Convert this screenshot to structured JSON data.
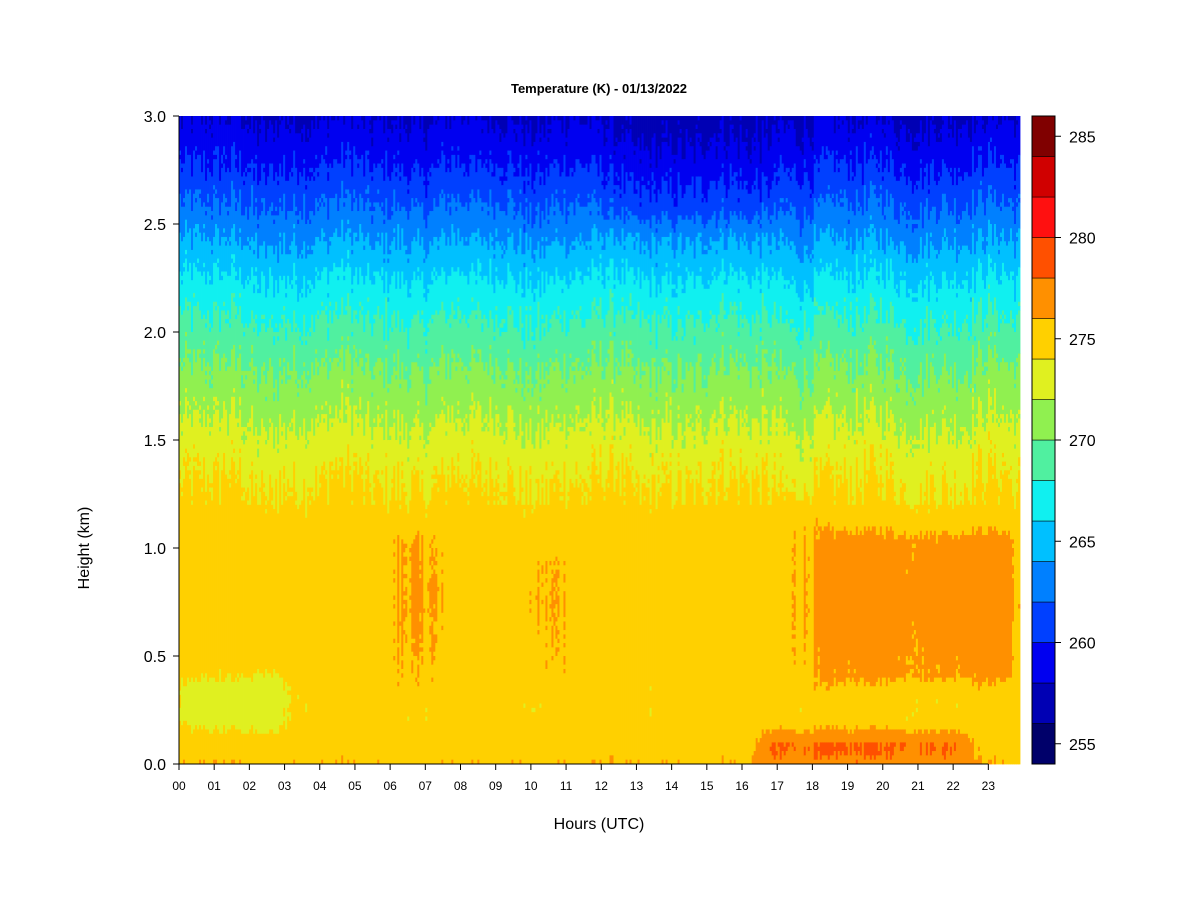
{
  "chart_data": {
    "type": "heatmap",
    "title": "Temperature (K) - 01/13/2022",
    "xlabel": "Hours (UTC)",
    "ylabel": "Height (km)",
    "xlim": [
      0,
      23.9
    ],
    "ylim": [
      0,
      3.0
    ],
    "x_ticks": [
      "00",
      "01",
      "02",
      "03",
      "04",
      "05",
      "06",
      "07",
      "08",
      "09",
      "10",
      "11",
      "12",
      "13",
      "14",
      "15",
      "16",
      "17",
      "18",
      "19",
      "20",
      "21",
      "22",
      "23"
    ],
    "y_ticks": [
      "0.0",
      "0.5",
      "1.0",
      "1.5",
      "2.0",
      "2.5",
      "3.0"
    ],
    "colorbar": {
      "range": [
        254,
        286
      ],
      "levels": [
        254,
        256,
        258,
        260,
        262,
        264,
        266,
        268,
        270,
        272,
        274,
        276,
        278,
        280,
        282,
        284,
        286
      ],
      "ticks": [
        255,
        260,
        265,
        270,
        275,
        280,
        285
      ],
      "colors": [
        "#00006a",
        "#0000b4",
        "#0000f0",
        "#0040ff",
        "#0080ff",
        "#00c0ff",
        "#10f0f0",
        "#50f0a0",
        "#90f050",
        "#e0f020",
        "#ffd000",
        "#ff9000",
        "#ff5000",
        "#ff1010",
        "#d00000",
        "#800000"
      ]
    },
    "profile": {
      "height_km": [
        0.0,
        0.05,
        0.1,
        0.2,
        0.3,
        0.5,
        0.75,
        1.0,
        1.25,
        1.4,
        1.5,
        1.6,
        1.8,
        2.0,
        2.2,
        2.4,
        2.6,
        2.8,
        3.0
      ],
      "temperature_k": [
        275.8,
        275.2,
        275.0,
        274.6,
        274.5,
        274.8,
        275.0,
        274.9,
        274.3,
        273.4,
        272.7,
        271.8,
        270.3,
        268.6,
        266.6,
        264.2,
        261.8,
        259.6,
        257.8
      ]
    },
    "time_anomalies": [
      {
        "hours": [
          6,
          7.5
        ],
        "heights_km": [
          0.3,
          1.1
        ],
        "delta_k": 1.2
      },
      {
        "hours": [
          9.8,
          11.2
        ],
        "heights_km": [
          0.35,
          1.0
        ],
        "delta_k": 1.0
      },
      {
        "hours": [
          17.2,
          18.5
        ],
        "heights_km": [
          0.3,
          1.2
        ],
        "delta_k": 1.2
      },
      {
        "hours": [
          18.5,
          23.8
        ],
        "heights_km": [
          0.35,
          1.1
        ],
        "delta_k": 1.7
      },
      {
        "hours": [
          16.5,
          22.5
        ],
        "heights_km": [
          0.0,
          0.15
        ],
        "delta_k": 3.0
      },
      {
        "hours": [
          0,
          3
        ],
        "heights_km": [
          0.15,
          0.4
        ],
        "delta_k": -1.5
      },
      {
        "hours": [
          12,
          17
        ],
        "heights_km": [
          2.5,
          3.0
        ],
        "delta_k": -1.0
      }
    ]
  }
}
